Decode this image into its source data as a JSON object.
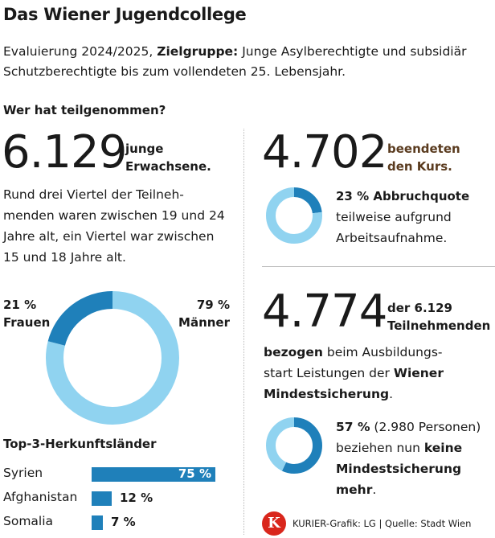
{
  "header": {
    "title": "Das Wiener Jugendcollege",
    "subtitle_pre": "Evaluierung 2024/2025, ",
    "subtitle_bold": "Zielgruppe:",
    "subtitle_post": " Junge Asylberechtigte und subsidiär Schutzberechtigte bis zum vollendeten 25. Lebensjahr."
  },
  "section_title": "Wer hat teilgenommen?",
  "participants": {
    "number": "6.129",
    "label_line1": "junge",
    "label_line2": "Erwachsene.",
    "text_line1": "Rund drei Viertel der Teilneh-",
    "text_line2": "menden waren zwischen 19 und 24",
    "text_line3": "Jahre alt, ein Viertel war zwischen",
    "text_line4": "15 und 18 Jahre alt."
  },
  "completed": {
    "number": "4.702",
    "label_line1": "beendeten",
    "label_line2": "den Kurs.",
    "dropout_bold": "23 % Abbruchquote",
    "dropout_line2": "teilweise aufgrund",
    "dropout_line3": "Arbeitsaufnahme."
  },
  "benefits": {
    "number": "4.774",
    "label_line1": "der 6.129",
    "label_line2": "Teilnehmenden",
    "line3_bold": "bezogen",
    "line3_rest": " beim Ausbildungs-",
    "line4_pre": "start Leistungen der ",
    "line4_bold": "Wiener",
    "line5_bold": "Mindestsicherung",
    "line5_rest": ".",
    "share_bold": "57 %",
    "share_rest": " (2.980 Personen)",
    "share_line2_pre": "beziehen nun ",
    "share_line2_bold": "keine",
    "share_line3_bold": "Mindestsicherung mehr",
    "share_line3_rest": "."
  },
  "origin": {
    "title": "Top-3-Herkunftsländer"
  },
  "footer": {
    "logo_letter": "K",
    "credit": "KURIER-Grafik: LG | Quelle: Stadt Wien"
  },
  "colors": {
    "dark_blue": "#1f80ba",
    "light_blue": "#90d3f0"
  },
  "chart_data": [
    {
      "type": "pie",
      "categories": [
        "Frauen",
        "Männer"
      ],
      "values": [
        21,
        79
      ],
      "value_labels": [
        "21 %",
        "79 %"
      ],
      "colors": [
        "#1f80ba",
        "#90d3f0"
      ]
    },
    {
      "type": "pie",
      "categories": [
        "Abbruchquote",
        ""
      ],
      "values": [
        23,
        77
      ],
      "colors": [
        "#1f80ba",
        "#90d3f0"
      ]
    },
    {
      "type": "pie",
      "categories": [
        "keine Mindestsicherung mehr",
        ""
      ],
      "values": [
        57,
        43
      ],
      "colors": [
        "#1f80ba",
        "#90d3f0"
      ]
    },
    {
      "type": "bar",
      "orientation": "horizontal",
      "categories": [
        "Syrien",
        "Afghanistan",
        "Somalia"
      ],
      "values": [
        75,
        12,
        7
      ],
      "value_labels": [
        "75 %",
        "12 %",
        "7 %"
      ],
      "color": "#1f80ba"
    }
  ]
}
